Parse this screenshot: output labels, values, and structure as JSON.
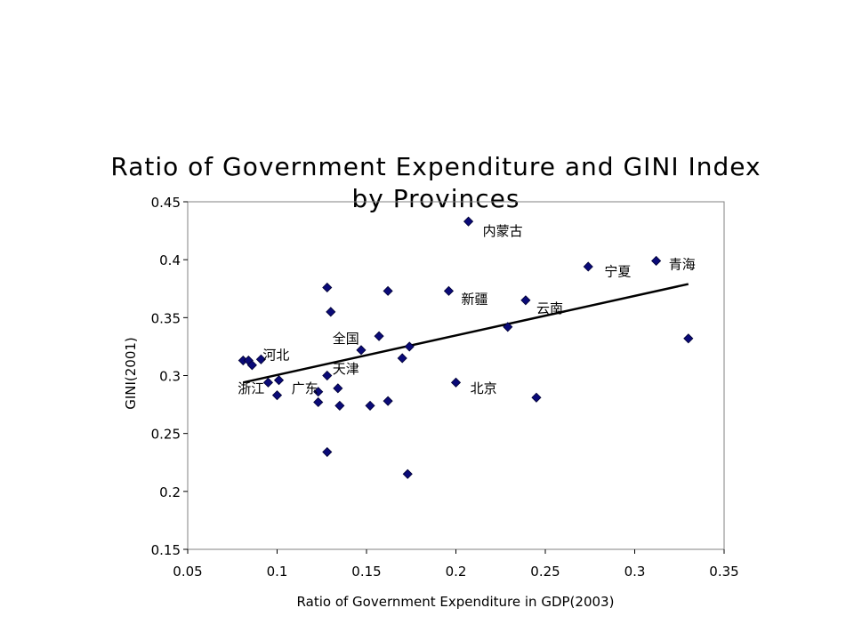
{
  "chart_data": {
    "type": "scatter",
    "title": "Ratio of Government Expenditure and GINI Index by Provinces",
    "xlabel": "Ratio of Government Expenditure in GDP(2003)",
    "ylabel": "GINI(2001)",
    "xlim": [
      0.05,
      0.35
    ],
    "ylim": [
      0.15,
      0.45
    ],
    "xticks": [
      "0.05",
      "0.1",
      "0.15",
      "0.2",
      "0.25",
      "0.3",
      "0.35"
    ],
    "yticks": [
      "0.15",
      "0.2",
      "0.25",
      "0.3",
      "0.35",
      "0.4",
      "0.45"
    ],
    "grid": false,
    "legend": "none",
    "marker_color": "#0a0a78",
    "trendline": {
      "type": "linear",
      "x": [
        0.081,
        0.33
      ],
      "y": [
        0.294,
        0.379
      ]
    },
    "points": [
      {
        "x": 0.081,
        "y": 0.313
      },
      {
        "x": 0.084,
        "y": 0.313
      },
      {
        "x": 0.086,
        "y": 0.309
      },
      {
        "x": 0.091,
        "y": 0.314
      },
      {
        "x": 0.095,
        "y": 0.294
      },
      {
        "x": 0.1,
        "y": 0.283
      },
      {
        "x": 0.101,
        "y": 0.296
      },
      {
        "x": 0.123,
        "y": 0.277
      },
      {
        "x": 0.123,
        "y": 0.286
      },
      {
        "x": 0.128,
        "y": 0.3
      },
      {
        "x": 0.128,
        "y": 0.234
      },
      {
        "x": 0.128,
        "y": 0.376
      },
      {
        "x": 0.13,
        "y": 0.355
      },
      {
        "x": 0.134,
        "y": 0.289
      },
      {
        "x": 0.135,
        "y": 0.274
      },
      {
        "x": 0.147,
        "y": 0.322
      },
      {
        "x": 0.152,
        "y": 0.274
      },
      {
        "x": 0.157,
        "y": 0.334
      },
      {
        "x": 0.162,
        "y": 0.278
      },
      {
        "x": 0.162,
        "y": 0.373
      },
      {
        "x": 0.17,
        "y": 0.315
      },
      {
        "x": 0.173,
        "y": 0.215
      },
      {
        "x": 0.174,
        "y": 0.325
      },
      {
        "x": 0.196,
        "y": 0.373
      },
      {
        "x": 0.2,
        "y": 0.294
      },
      {
        "x": 0.207,
        "y": 0.433
      },
      {
        "x": 0.229,
        "y": 0.342
      },
      {
        "x": 0.239,
        "y": 0.365
      },
      {
        "x": 0.245,
        "y": 0.281
      },
      {
        "x": 0.274,
        "y": 0.394
      },
      {
        "x": 0.312,
        "y": 0.399
      },
      {
        "x": 0.33,
        "y": 0.332
      }
    ],
    "annotations": [
      {
        "text": "内蒙古",
        "x": 0.215,
        "y": 0.421
      },
      {
        "text": "宁夏",
        "x": 0.283,
        "y": 0.386
      },
      {
        "text": "青海",
        "x": 0.319,
        "y": 0.392
      },
      {
        "text": "新疆",
        "x": 0.203,
        "y": 0.362
      },
      {
        "text": "云南",
        "x": 0.245,
        "y": 0.354
      },
      {
        "text": "全国",
        "x": 0.131,
        "y": 0.328
      },
      {
        "text": "河北",
        "x": 0.092,
        "y": 0.314
      },
      {
        "text": "天津",
        "x": 0.131,
        "y": 0.302
      },
      {
        "text": "浙江",
        "x": 0.078,
        "y": 0.285
      },
      {
        "text": "广东",
        "x": 0.108,
        "y": 0.285
      },
      {
        "text": "北京",
        "x": 0.208,
        "y": 0.285
      }
    ]
  }
}
